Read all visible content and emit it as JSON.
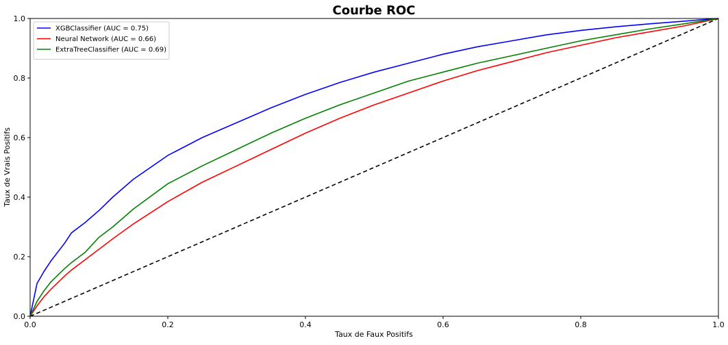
{
  "chart_data": {
    "type": "line",
    "title": "Courbe ROC",
    "xlabel": "Taux de Faux Positifs",
    "ylabel": "Taux de Vrais Positifs",
    "xlim": [
      0.0,
      1.0
    ],
    "ylim": [
      0.0,
      1.0
    ],
    "xticks": [
      "0.0",
      "0.2",
      "0.4",
      "0.6",
      "0.8",
      "1.0"
    ],
    "yticks": [
      "0.0",
      "0.2",
      "0.4",
      "0.6",
      "0.8",
      "1.0"
    ],
    "grid": false,
    "legend_position": "top-left",
    "series": [
      {
        "name": "XGBClassifier (AUC = 0.75)",
        "color": "#0000ff",
        "x": [
          0.0,
          0.01,
          0.02,
          0.03,
          0.05,
          0.06,
          0.08,
          0.1,
          0.12,
          0.15,
          0.2,
          0.25,
          0.3,
          0.35,
          0.4,
          0.45,
          0.5,
          0.55,
          0.6,
          0.65,
          0.7,
          0.75,
          0.8,
          0.85,
          0.9,
          0.95,
          1.0
        ],
        "y": [
          0.0,
          0.11,
          0.15,
          0.185,
          0.245,
          0.28,
          0.315,
          0.355,
          0.4,
          0.46,
          0.54,
          0.6,
          0.65,
          0.7,
          0.745,
          0.785,
          0.82,
          0.85,
          0.88,
          0.905,
          0.925,
          0.945,
          0.96,
          0.972,
          0.982,
          0.991,
          1.0
        ]
      },
      {
        "name": "Neural Network (AUC = 0.66)",
        "color": "#ff0000",
        "x": [
          0.0,
          0.01,
          0.02,
          0.03,
          0.05,
          0.06,
          0.08,
          0.1,
          0.12,
          0.15,
          0.2,
          0.25,
          0.3,
          0.35,
          0.4,
          0.45,
          0.5,
          0.55,
          0.6,
          0.65,
          0.7,
          0.75,
          0.8,
          0.85,
          0.9,
          0.95,
          1.0
        ],
        "y": [
          0.0,
          0.035,
          0.065,
          0.09,
          0.135,
          0.155,
          0.19,
          0.225,
          0.26,
          0.31,
          0.385,
          0.45,
          0.505,
          0.56,
          0.615,
          0.665,
          0.71,
          0.75,
          0.79,
          0.825,
          0.855,
          0.885,
          0.91,
          0.935,
          0.955,
          0.975,
          1.0
        ]
      },
      {
        "name": "ExtraTreeClassifier (AUC = 0.69)",
        "color": "#008000",
        "x": [
          0.0,
          0.01,
          0.02,
          0.03,
          0.05,
          0.06,
          0.08,
          0.1,
          0.12,
          0.15,
          0.2,
          0.25,
          0.3,
          0.35,
          0.4,
          0.45,
          0.5,
          0.55,
          0.6,
          0.65,
          0.7,
          0.75,
          0.8,
          0.85,
          0.9,
          0.95,
          1.0
        ],
        "y": [
          0.0,
          0.05,
          0.085,
          0.115,
          0.16,
          0.18,
          0.215,
          0.265,
          0.3,
          0.36,
          0.445,
          0.505,
          0.56,
          0.615,
          0.665,
          0.71,
          0.75,
          0.79,
          0.82,
          0.85,
          0.875,
          0.9,
          0.925,
          0.945,
          0.965,
          0.982,
          1.0
        ]
      }
    ],
    "reference_line": {
      "color": "#000000",
      "dashed": true,
      "x": [
        0.0,
        1.0
      ],
      "y": [
        0.0,
        1.0
      ]
    }
  }
}
